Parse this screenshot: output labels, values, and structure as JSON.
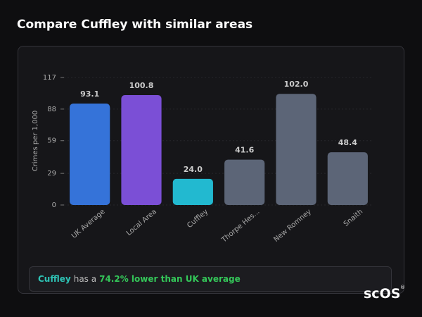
{
  "header": {
    "title": "Compare Cuffley with similar areas"
  },
  "chart_data": {
    "type": "bar",
    "y_label": "Crimes per 1,000",
    "categories": [
      "UK Average",
      "Local Area",
      "Cuffley",
      "Thorpe Hes...",
      "New Romney",
      "Snaith"
    ],
    "values": [
      93.1,
      100.8,
      24.0,
      41.6,
      102.0,
      48.4
    ],
    "value_labels": [
      "93.1",
      "100.8",
      "24.0",
      "41.6",
      "102.0",
      "48.4"
    ],
    "colors": [
      "#3573d9",
      "#7b4fd6",
      "#22b9d0",
      "#5c6577",
      "#5c6577",
      "#5c6577"
    ],
    "ylim": [
      0,
      117
    ],
    "yticks": [
      0,
      29,
      59,
      88,
      117
    ],
    "grid": true
  },
  "summary": {
    "place": "Cuffley",
    "text": "has a",
    "stat": "74.2% lower than UK average"
  },
  "logo": {
    "text": "scOS",
    "mark": "®"
  }
}
